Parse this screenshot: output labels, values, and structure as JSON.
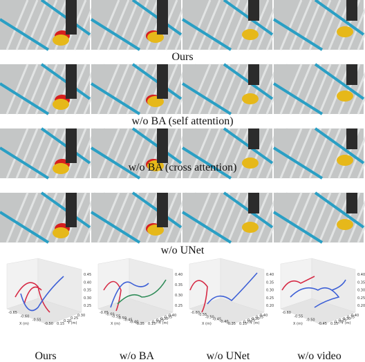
{
  "rows": [
    {
      "caption": "Ours"
    },
    {
      "caption": "w/o BA (self attention)"
    },
    {
      "caption": "w/o BA (cross attention)"
    },
    {
      "caption": "w/o UNet"
    }
  ],
  "plots": [
    {
      "caption": "Ours",
      "z_ticks": [
        "0.45",
        "0.40",
        "0.35",
        "0.30",
        "0.25"
      ],
      "x_ticks": [
        "-0.65",
        "-0.60",
        "-0.55",
        "-0.50"
      ],
      "y_ticks": [
        "0.30",
        "0.25",
        "0.20",
        "0.15"
      ],
      "x_label": "X (m)",
      "y_label": "Y (m)"
    },
    {
      "caption": "w/o BA",
      "z_ticks": [
        "0.40",
        "0.35",
        "0.30",
        "0.25"
      ],
      "x_ticks": [
        "-0.65",
        "-0.60",
        "-0.55",
        "-0.50",
        "-0.45",
        "-0.40",
        "-0.35"
      ],
      "y_ticks": [
        "0.40",
        "0.35",
        "0.30",
        "0.25",
        "0.20",
        "0.15"
      ],
      "x_label": "X (m)",
      "y_label": "Y (m)"
    },
    {
      "caption": "w/o UNet",
      "z_ticks": [
        "0.40",
        "0.35",
        "0.30",
        "0.25",
        "0.20"
      ],
      "x_ticks": [
        "-0.60",
        "-0.55",
        "-0.50",
        "-0.45",
        "-0.40",
        "-0.35"
      ],
      "y_ticks": [
        "0.40",
        "0.35",
        "0.30",
        "0.25",
        "0.20",
        "0.15"
      ],
      "x_label": "X (m)",
      "y_label": "Y (m)"
    },
    {
      "caption": "w/o video",
      "z_ticks": [
        "0.40",
        "0.35",
        "0.30",
        "0.25",
        "0.20"
      ],
      "x_ticks": [
        "-0.60",
        "-0.55",
        "-0.50",
        "-0.45"
      ],
      "y_ticks": [
        "0.40",
        "0.35",
        "0.30",
        "0.25",
        "0.20",
        "0.15"
      ],
      "x_label": "X (m)",
      "y_label": "Y (m)"
    }
  ]
}
